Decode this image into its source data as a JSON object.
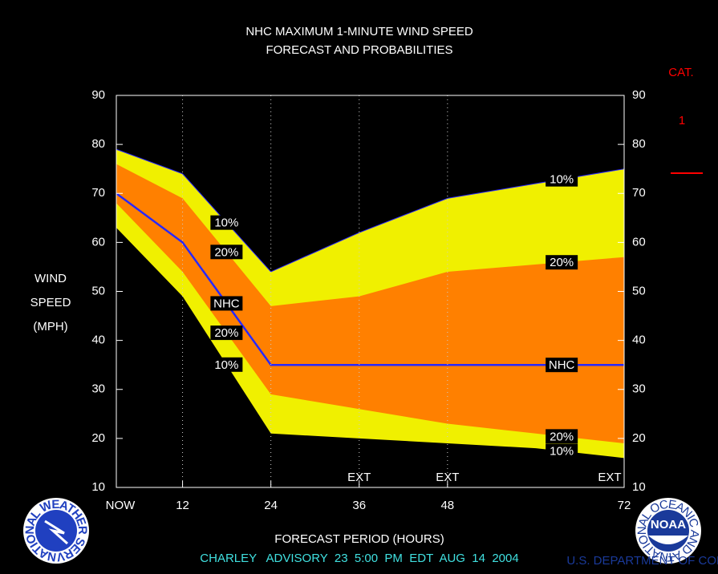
{
  "chart_data": {
    "type": "probability_band",
    "title_lines": [
      "NHC MAXIMUM 1-MINUTE WIND SPEED",
      "FORECAST AND PROBABILITIES"
    ],
    "ylabel_lines": [
      "WIND",
      "SPEED",
      "(MPH)"
    ],
    "xlabel": "FORECAST PERIOD (HOURS)",
    "footer": "CHARLEY   ADVISORY  23  5:00  PM  EDT  AUG  14  2004",
    "x": [
      3,
      12,
      24,
      36,
      48,
      60,
      72
    ],
    "series": [
      {
        "name": "10%",
        "color": "#f0f000",
        "values": [
          79,
          74,
          54,
          62,
          69,
          72,
          75
        ]
      },
      {
        "name": "20%",
        "color": "#ff8000",
        "values": [
          76,
          69,
          47,
          49,
          54,
          55.5,
          57
        ]
      },
      {
        "name": "NHC",
        "color": "#2828ff",
        "values": [
          70,
          60,
          35,
          35,
          35,
          35,
          35
        ]
      },
      {
        "name": "20%",
        "color": "#ff8000",
        "values": [
          68,
          54,
          29,
          26,
          23,
          21,
          19
        ]
      },
      {
        "name": "10%",
        "color": "#f0f000",
        "values": [
          63,
          49,
          21,
          20,
          19,
          18,
          16
        ]
      }
    ],
    "xlim": [
      3,
      72
    ],
    "xticks": [
      {
        "value": 3,
        "label": "NOW"
      },
      12,
      24,
      36,
      48,
      72
    ],
    "ylim": [
      10,
      90
    ],
    "yticks": [
      10,
      20,
      30,
      40,
      50,
      60,
      70,
      80,
      90
    ],
    "ext_label": "EXT",
    "ext_x": [
      36,
      48,
      72
    ],
    "category": {
      "title": "CAT.",
      "label": "1",
      "color": "#ff0000"
    },
    "nws_logo_text": "NATIONAL WEATHER SERVICE",
    "noaa_logo": {
      "name": "NOAA",
      "ring_text": "NATIONAL OCEANIC AND ATMOSPHERIC ADMINISTRATION",
      "ring_text_bottom": "U.S. DEPARTMENT OF COMMERCE"
    }
  }
}
